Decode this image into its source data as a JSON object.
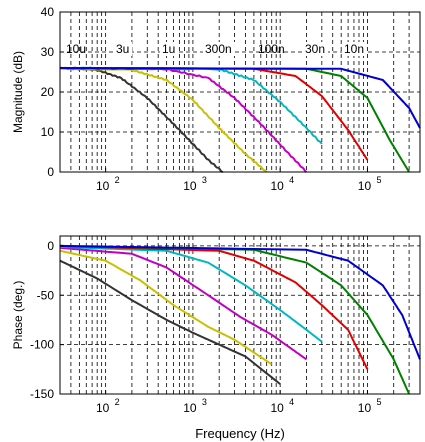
{
  "chart_data": [
    {
      "type": "line",
      "xlabel": "",
      "ylabel": "Magnitude (dB)",
      "xscale": "log",
      "xlim": [
        30,
        400000
      ],
      "ylim": [
        0,
        40
      ],
      "grid": true,
      "xticks": [
        100,
        1000,
        10000,
        100000
      ],
      "xtick_labels": [
        [
          "10",
          "2"
        ],
        [
          "10",
          "3"
        ],
        [
          "10",
          "4"
        ],
        [
          "10",
          "5"
        ]
      ],
      "yticks": [
        0,
        10,
        20,
        30,
        40
      ],
      "ytick_labels": [
        "0",
        "10",
        "20",
        "30",
        "40"
      ],
      "annotations": [
        "10u",
        "3u",
        "1u",
        "300n",
        "100n",
        "30n",
        "10n"
      ],
      "series": [
        {
          "color": "#333333",
          "x": [
            30,
            80,
            150,
            300,
            600,
            1000,
            1500,
            2200
          ],
          "y": [
            26,
            25.5,
            23.5,
            18.5,
            12,
            7,
            3,
            0
          ]
        },
        {
          "color": "#c8c000",
          "x": [
            30,
            200,
            500,
            1000,
            2000,
            4000,
            7000
          ],
          "y": [
            26,
            25.5,
            23,
            18,
            11,
            4.5,
            0
          ]
        },
        {
          "color": "#c000c0",
          "x": [
            30,
            500,
            1500,
            3000,
            6000,
            12000,
            20000
          ],
          "y": [
            26,
            25.7,
            23.5,
            18.5,
            12,
            5,
            0
          ]
        },
        {
          "color": "#00b8c0",
          "x": [
            30,
            2000,
            5000,
            10000,
            20000,
            30000
          ],
          "y": [
            26,
            25.7,
            23,
            17.5,
            11,
            7
          ]
        },
        {
          "color": "#e00000",
          "x": [
            30,
            5000,
            15000,
            30000,
            60000,
            100000
          ],
          "y": [
            26,
            25.8,
            24,
            19,
            10.5,
            3
          ]
        },
        {
          "color": "#008000",
          "x": [
            30,
            20000,
            50000,
            100000,
            180000,
            300000
          ],
          "y": [
            26,
            25.8,
            24,
            18.5,
            8,
            0
          ]
        },
        {
          "color": "#0000d0",
          "x": [
            30,
            50000,
            150000,
            300000,
            400000
          ],
          "y": [
            26,
            25.8,
            23,
            16,
            11
          ]
        }
      ]
    },
    {
      "type": "line",
      "xlabel": "Frequency (Hz)",
      "ylabel": "Phase (deg.)",
      "xscale": "log",
      "xlim": [
        30,
        400000
      ],
      "ylim": [
        -150,
        10
      ],
      "grid": true,
      "xticks": [
        100,
        1000,
        10000,
        100000
      ],
      "xtick_labels": [
        [
          "10",
          "2"
        ],
        [
          "10",
          "3"
        ],
        [
          "10",
          "4"
        ],
        [
          "10",
          "5"
        ]
      ],
      "yticks": [
        0,
        -50,
        -100,
        -150
      ],
      "ytick_labels": [
        "0",
        "-50",
        "-100",
        "-150"
      ],
      "series": [
        {
          "color": "#333333",
          "x": [
            30,
            80,
            200,
            500,
            1000,
            2000,
            4000,
            10000
          ],
          "y": [
            -15,
            -33,
            -55,
            -75,
            -88,
            -100,
            -112,
            -140
          ]
        },
        {
          "color": "#c8c000",
          "x": [
            30,
            100,
            250,
            600,
            1500,
            3000,
            8000
          ],
          "y": [
            -5,
            -15,
            -35,
            -60,
            -82,
            -95,
            -120
          ]
        },
        {
          "color": "#c000c0",
          "x": [
            30,
            200,
            500,
            1500,
            3500,
            8000,
            20000
          ],
          "y": [
            -2,
            -8,
            -22,
            -50,
            -72,
            -90,
            -115
          ]
        },
        {
          "color": "#00b8c0",
          "x": [
            30,
            500,
            1500,
            4000,
            10000,
            20000,
            30000
          ],
          "y": [
            -1,
            -5,
            -17,
            -40,
            -65,
            -85,
            -97
          ]
        },
        {
          "color": "#e00000",
          "x": [
            30,
            2000,
            5000,
            15000,
            30000,
            60000,
            100000
          ],
          "y": [
            0,
            -5,
            -15,
            -37,
            -60,
            -85,
            -125
          ]
        },
        {
          "color": "#008000",
          "x": [
            30,
            5000,
            20000,
            50000,
            100000,
            200000,
            300000
          ],
          "y": [
            0,
            -4,
            -17,
            -40,
            -70,
            -115,
            -150
          ]
        },
        {
          "color": "#0000d0",
          "x": [
            30,
            20000,
            60000,
            150000,
            250000,
            400000
          ],
          "y": [
            0,
            -4,
            -15,
            -40,
            -70,
            -115
          ]
        }
      ]
    }
  ]
}
